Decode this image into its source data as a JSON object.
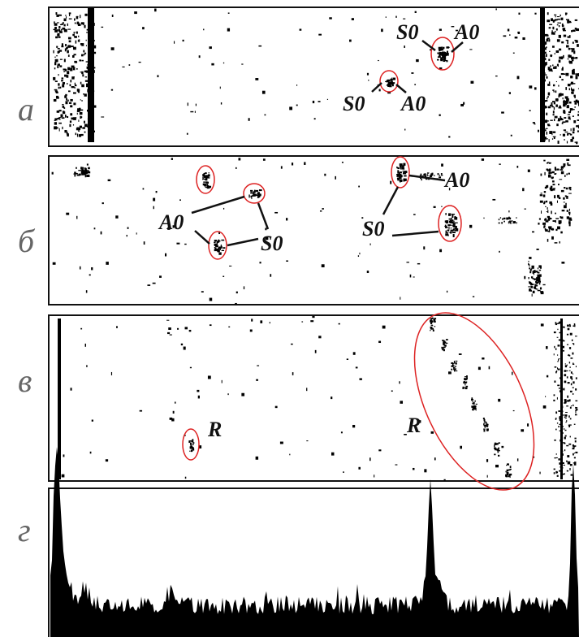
{
  "panels": [
    {
      "label": "а",
      "annotations": [
        "S0",
        "A0",
        "S0",
        "A0"
      ]
    },
    {
      "label": "б",
      "annotations": [
        "A0",
        "S0",
        "S0",
        "A0"
      ]
    },
    {
      "label": "в",
      "annotations": [
        "R",
        "R"
      ]
    },
    {
      "label": "г",
      "annotations": []
    }
  ]
}
